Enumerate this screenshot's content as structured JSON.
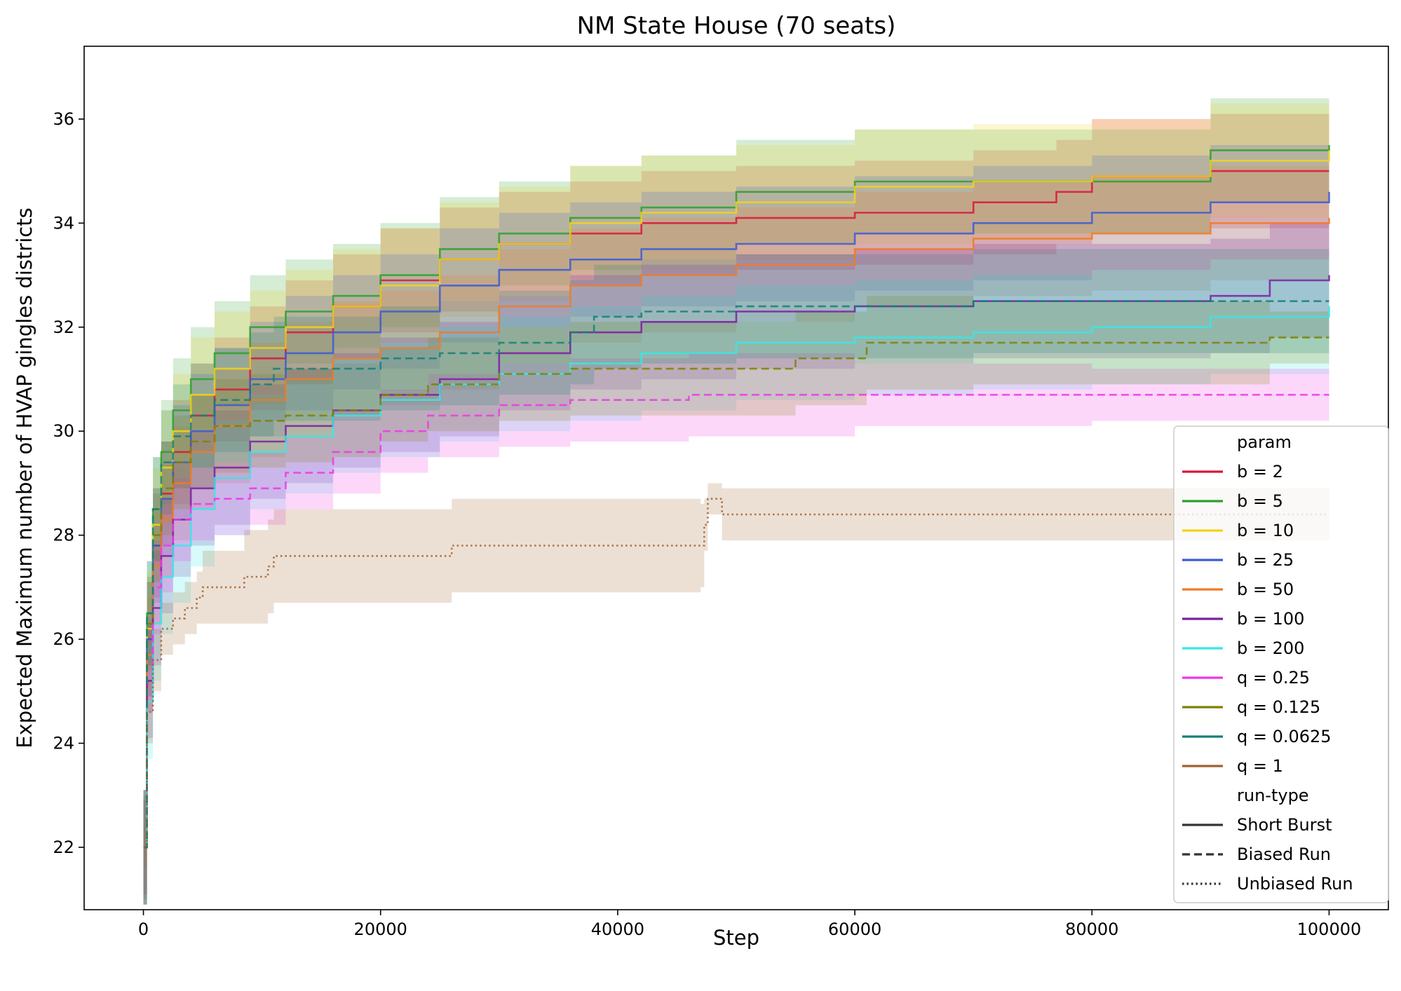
{
  "chart_data": {
    "type": "line",
    "title": "NM State House (70 seats)",
    "xlabel": "Step",
    "ylabel": "Expected Maximum number of HVAP gingles districts",
    "xlim": [
      -5000,
      105000
    ],
    "ylim": [
      20.8,
      37.4
    ],
    "xticks": [
      0,
      20000,
      40000,
      60000,
      80000,
      100000
    ],
    "yticks": [
      22,
      24,
      26,
      28,
      30,
      32,
      34,
      36
    ],
    "grid": false,
    "legend_position": "lower-right",
    "legend": {
      "param_title": "param",
      "runtype_title": "run-type",
      "run_types": [
        {
          "label": "Short Burst",
          "dash": "solid"
        },
        {
          "label": "Biased Run",
          "dash": "dashed"
        },
        {
          "label": "Unbiased Run",
          "dash": "dotted"
        }
      ]
    },
    "series": [
      {
        "name": "b = 2",
        "color": "#dc143c",
        "dash": "solid",
        "x": [
          0,
          300,
          800,
          1500,
          2500,
          4000,
          6000,
          9000,
          12000,
          16000,
          20000,
          25000,
          30000,
          36000,
          42000,
          50000,
          60000,
          70000,
          77000,
          80000,
          90000,
          100000
        ],
        "y": [
          22.0,
          26.0,
          27.8,
          28.8,
          29.6,
          30.3,
          30.8,
          31.4,
          31.9,
          32.4,
          32.9,
          33.3,
          33.6,
          33.8,
          34.0,
          34.1,
          34.2,
          34.4,
          34.6,
          34.9,
          35.0,
          35.0
        ],
        "band": [
          1.1,
          1.1,
          1.0,
          1.0,
          1.0,
          1.0,
          1.0,
          1.0,
          1.0,
          1.0,
          1.0,
          1.0,
          1.0,
          1.0,
          1.0,
          1.0,
          1.0,
          1.0,
          1.0,
          1.1,
          1.1,
          1.1
        ]
      },
      {
        "name": "b = 5",
        "color": "#2ca02c",
        "dash": "solid",
        "x": [
          0,
          300,
          800,
          1500,
          2500,
          4000,
          6000,
          9000,
          12000,
          16000,
          20000,
          25000,
          30000,
          36000,
          42000,
          50000,
          60000,
          70000,
          80000,
          90000,
          100000
        ],
        "y": [
          22.0,
          26.5,
          28.5,
          29.6,
          30.4,
          31.0,
          31.5,
          32.0,
          32.3,
          32.6,
          33.0,
          33.5,
          33.8,
          34.1,
          34.3,
          34.6,
          34.8,
          34.8,
          34.8,
          35.4,
          35.5
        ],
        "band": [
          1.1,
          1.0,
          1.0,
          1.0,
          1.0,
          1.0,
          1.0,
          1.0,
          1.0,
          1.0,
          1.0,
          1.0,
          1.0,
          1.0,
          1.0,
          1.0,
          1.0,
          1.0,
          1.0,
          1.0,
          1.0
        ]
      },
      {
        "name": "b = 10",
        "color": "#f2d31b",
        "dash": "solid",
        "x": [
          0,
          300,
          800,
          1500,
          2500,
          4000,
          6000,
          9000,
          12000,
          16000,
          20000,
          25000,
          30000,
          36000,
          42000,
          50000,
          60000,
          70000,
          80000,
          90000,
          100000
        ],
        "y": [
          22.0,
          26.2,
          28.2,
          29.3,
          30.0,
          30.7,
          31.2,
          31.6,
          32.0,
          32.4,
          32.8,
          33.3,
          33.6,
          34.0,
          34.2,
          34.4,
          34.7,
          34.8,
          34.9,
          35.2,
          35.4
        ],
        "band": [
          1.1,
          1.1,
          1.1,
          1.1,
          1.1,
          1.1,
          1.1,
          1.1,
          1.1,
          1.1,
          1.1,
          1.1,
          1.1,
          1.1,
          1.1,
          1.1,
          1.1,
          1.1,
          1.1,
          1.1,
          1.1
        ]
      },
      {
        "name": "b = 25",
        "color": "#3b5bd6",
        "dash": "solid",
        "x": [
          0,
          300,
          800,
          1500,
          2500,
          4000,
          6000,
          9000,
          12000,
          16000,
          20000,
          25000,
          30000,
          36000,
          42000,
          50000,
          60000,
          70000,
          80000,
          90000,
          100000
        ],
        "y": [
          22.0,
          26.0,
          27.8,
          28.7,
          29.4,
          30.0,
          30.5,
          31.0,
          31.5,
          31.9,
          32.3,
          32.8,
          33.1,
          33.3,
          33.5,
          33.6,
          33.8,
          34.0,
          34.2,
          34.4,
          34.6
        ],
        "band": [
          1.1,
          1.1,
          1.1,
          1.1,
          1.1,
          1.1,
          1.1,
          1.1,
          1.1,
          1.1,
          1.1,
          1.1,
          1.1,
          1.1,
          1.1,
          1.1,
          1.1,
          1.1,
          1.1,
          1.1,
          1.1
        ]
      },
      {
        "name": "b = 50",
        "color": "#f07b24",
        "dash": "solid",
        "x": [
          0,
          300,
          800,
          1500,
          2500,
          4000,
          6000,
          9000,
          12000,
          16000,
          20000,
          25000,
          30000,
          36000,
          42000,
          50000,
          60000,
          70000,
          80000,
          90000,
          100000
        ],
        "y": [
          22.0,
          25.7,
          27.4,
          28.3,
          29.0,
          29.6,
          30.1,
          30.6,
          31.0,
          31.4,
          31.6,
          31.9,
          32.4,
          32.8,
          33.0,
          33.2,
          33.5,
          33.7,
          33.8,
          34.0,
          34.1
        ],
        "band": [
          1.1,
          1.1,
          1.1,
          1.1,
          1.1,
          1.1,
          1.1,
          1.1,
          1.1,
          1.1,
          1.1,
          1.1,
          1.1,
          1.1,
          1.1,
          1.1,
          1.1,
          1.1,
          1.1,
          1.1,
          1.1
        ]
      },
      {
        "name": "b = 100",
        "color": "#7b1fa2",
        "dash": "solid",
        "x": [
          0,
          300,
          800,
          1500,
          2500,
          4000,
          6000,
          9000,
          12000,
          16000,
          20000,
          25000,
          30000,
          36000,
          42000,
          50000,
          60000,
          70000,
          80000,
          90000,
          95000,
          100000
        ],
        "y": [
          22.0,
          25.2,
          26.6,
          27.6,
          28.3,
          28.9,
          29.3,
          29.8,
          30.1,
          30.4,
          30.7,
          31.0,
          31.5,
          31.9,
          32.1,
          32.3,
          32.4,
          32.5,
          32.5,
          32.6,
          32.9,
          33.0
        ],
        "band": [
          1.1,
          1.1,
          1.1,
          1.1,
          1.1,
          1.1,
          1.1,
          1.1,
          1.1,
          1.1,
          1.1,
          1.1,
          1.1,
          1.1,
          1.1,
          1.1,
          1.1,
          1.1,
          1.1,
          1.1,
          1.1,
          1.1
        ]
      },
      {
        "name": "b = 200",
        "color": "#36e8e8",
        "dash": "solid",
        "x": [
          0,
          300,
          800,
          1500,
          2500,
          4000,
          6000,
          9000,
          12000,
          16000,
          20000,
          25000,
          30000,
          36000,
          42000,
          50000,
          60000,
          70000,
          80000,
          90000,
          100000
        ],
        "y": [
          22.0,
          24.8,
          26.3,
          27.2,
          27.8,
          28.5,
          29.1,
          29.6,
          29.9,
          30.3,
          30.6,
          30.9,
          31.1,
          31.3,
          31.5,
          31.7,
          31.8,
          31.9,
          32.0,
          32.2,
          32.4
        ],
        "band": [
          1.1,
          1.1,
          1.1,
          1.1,
          1.1,
          1.1,
          1.1,
          1.1,
          1.1,
          1.1,
          1.1,
          1.1,
          1.1,
          1.1,
          1.1,
          1.1,
          1.1,
          1.1,
          1.1,
          1.1,
          1.1
        ]
      },
      {
        "name": "q = 0.25",
        "color": "#ee37e6",
        "dash": "dashed",
        "x": [
          0,
          300,
          800,
          1500,
          2500,
          4000,
          6000,
          9000,
          12000,
          16000,
          20000,
          24000,
          30000,
          36000,
          42000,
          46000,
          60000,
          80000,
          100000
        ],
        "y": [
          22.0,
          25.5,
          27.0,
          27.8,
          28.3,
          28.6,
          28.7,
          28.9,
          29.2,
          29.6,
          30.0,
          30.3,
          30.5,
          30.6,
          30.6,
          30.7,
          30.7,
          30.7,
          30.7
        ],
        "band": [
          0.9,
          0.9,
          0.9,
          0.9,
          0.8,
          0.7,
          0.7,
          0.7,
          0.7,
          0.8,
          0.8,
          0.8,
          0.8,
          0.8,
          0.8,
          0.8,
          0.6,
          0.5,
          0.5
        ]
      },
      {
        "name": "q = 0.125",
        "color": "#808000",
        "dash": "dashed",
        "x": [
          0,
          300,
          800,
          1500,
          2500,
          4000,
          6000,
          9000,
          12000,
          16000,
          20000,
          24000,
          30000,
          36000,
          42000,
          48000,
          55000,
          61000,
          70000,
          80000,
          95000,
          100000
        ],
        "y": [
          22.0,
          26.3,
          28.0,
          28.9,
          29.4,
          29.8,
          30.1,
          30.2,
          30.3,
          30.4,
          30.7,
          30.9,
          31.1,
          31.2,
          31.2,
          31.2,
          31.4,
          31.7,
          31.7,
          31.7,
          31.8,
          31.8
        ],
        "band": [
          0.9,
          0.9,
          0.9,
          0.9,
          0.9,
          0.9,
          0.9,
          0.9,
          0.9,
          0.9,
          0.9,
          0.9,
          0.9,
          0.9,
          0.9,
          0.9,
          0.9,
          0.9,
          0.8,
          0.8,
          0.5,
          0.4
        ]
      },
      {
        "name": "q = 0.0625",
        "color": "#138075",
        "dash": "dashed",
        "x": [
          0,
          300,
          800,
          1500,
          2500,
          4000,
          6000,
          9000,
          11000,
          16000,
          20000,
          25000,
          30000,
          36000,
          38000,
          42000,
          50000,
          60000,
          70000,
          80000,
          90000,
          100000
        ],
        "y": [
          22.0,
          26.5,
          28.5,
          29.4,
          29.9,
          30.3,
          30.6,
          30.9,
          31.2,
          31.2,
          31.4,
          31.5,
          31.7,
          31.9,
          32.2,
          32.3,
          32.4,
          32.4,
          32.5,
          32.5,
          32.5,
          32.5
        ],
        "band": [
          1.0,
          1.0,
          1.0,
          1.0,
          1.0,
          1.0,
          1.0,
          1.0,
          1.0,
          1.0,
          1.0,
          1.0,
          1.0,
          1.0,
          1.0,
          1.0,
          1.0,
          1.0,
          1.0,
          1.0,
          1.0,
          1.0
        ]
      },
      {
        "name": "q = 1",
        "color": "#a0622d",
        "dash": "dotted",
        "x": [
          0,
          300,
          800,
          1500,
          2500,
          3500,
          4500,
          5000,
          8500,
          10500,
          11000,
          26000,
          35000,
          47000,
          47300,
          47600,
          48800,
          60000,
          80000,
          100000
        ],
        "y": [
          22.0,
          24.6,
          25.6,
          26.2,
          26.4,
          26.6,
          26.8,
          27.0,
          27.2,
          27.4,
          27.6,
          27.8,
          27.8,
          27.8,
          28.2,
          28.7,
          28.4,
          28.4,
          28.4,
          28.4
        ],
        "band": [
          0.4,
          0.6,
          0.6,
          0.5,
          0.5,
          0.5,
          0.5,
          0.7,
          0.9,
          0.9,
          0.9,
          0.9,
          0.9,
          0.8,
          0.5,
          0.3,
          0.5,
          0.5,
          0.5,
          0.5
        ]
      }
    ]
  }
}
